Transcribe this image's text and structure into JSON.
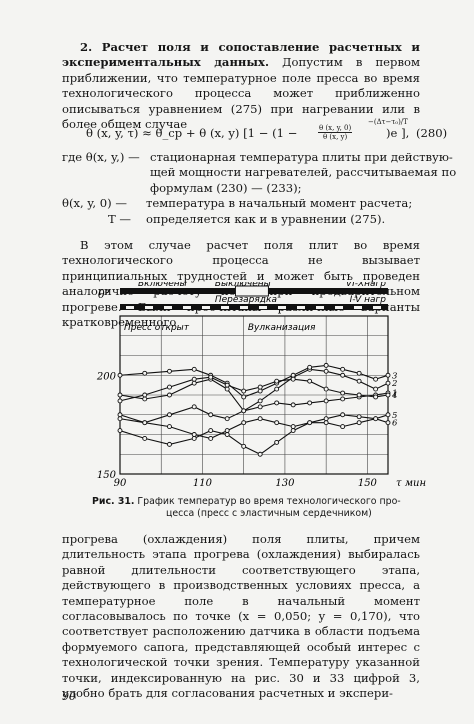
{
  "section": {
    "heading": "2. Расчет поля и сопоставление расчетных и экспериментальных данных.",
    "intro": "Допустим в первом приближении, что температурное поле пресса во время технологического процесса может приближенно описываться уравнением (275) при нагревании или в более общем случае"
  },
  "formula": {
    "main": "θ (x, y, τ) ≈ θ_ср + θ (x, y) [1 − (1 −",
    "frac_num": "θ (x, y, 0)",
    "frac_den": "θ (x, y)",
    "exponent": "−(Δτ−τ₀)/T",
    "tail": ")e ],",
    "number": "(280)"
  },
  "definitions": [
    {
      "term": "где θ(x, y,) —",
      "text": "стационарная температура плиты при действую-"
    },
    {
      "term": "",
      "text": "щей мощности нагревателей, рассчитываемая по"
    },
    {
      "term": "",
      "text": "формулам (230) — (233);"
    },
    {
      "term": "θ(x, y, 0) —",
      "text": "температура в начальный момент расчета;"
    },
    {
      "term": "T —",
      "text": "определяется как и в уравнении (275)."
    }
  ],
  "paragraph_mid": "В этом случае расчет поля плит во время технологического процесса не вызывает принципиальных трудностей и может быть проведен аналогично расчету поля при предварительном прогреве. Были просчитаны различные варианты кратковременного",
  "chart_data": {
    "type": "line",
    "title": "",
    "xlabel": "τ мин",
    "ylabel": "θ°",
    "xlim": [
      90,
      155
    ],
    "ylim": [
      150,
      230
    ],
    "x_ticks": [
      "90",
      "110",
      "130",
      "150"
    ],
    "y_ticks": [
      "150",
      "200"
    ],
    "grid": true,
    "legend": "none",
    "annotations": [
      "Включены",
      "Выключены",
      "VI-Хнагр",
      "Перезарядка",
      "I-V нагр",
      "Пресс открыт",
      "Вулканизация"
    ],
    "series": [
      {
        "name": "1",
        "x": [
          90,
          96,
          102,
          108,
          112,
          116,
          120,
          124,
          128,
          132,
          136,
          140,
          144,
          148,
          152,
          155
        ],
        "y": [
          180,
          176,
          180,
          184,
          180,
          178,
          182,
          184,
          186,
          185,
          186,
          187,
          188,
          189,
          190,
          191
        ]
      },
      {
        "name": "2",
        "x": [
          90,
          96,
          102,
          108,
          112,
          116,
          120,
          124,
          128,
          132,
          136,
          140,
          144,
          148,
          152,
          155
        ],
        "y": [
          190,
          188,
          190,
          196,
          198,
          193,
          182,
          187,
          193,
          199,
          203,
          202,
          200,
          197,
          193,
          196
        ]
      },
      {
        "name": "3",
        "x": [
          90,
          96,
          102,
          108,
          112,
          116,
          120,
          124,
          128,
          132,
          136,
          140,
          144,
          148,
          152,
          155
        ],
        "y": [
          200,
          201,
          202,
          203,
          200,
          196,
          189,
          192,
          196,
          200,
          204,
          205,
          203,
          201,
          198,
          200
        ]
      },
      {
        "name": "4",
        "x": [
          90,
          96,
          102,
          108,
          112,
          116,
          120,
          124,
          128,
          132,
          136,
          140,
          144,
          148,
          152,
          155
        ],
        "y": [
          187,
          190,
          194,
          198,
          199,
          195,
          192,
          194,
          197,
          198,
          197,
          193,
          191,
          190,
          189,
          190
        ]
      },
      {
        "name": "5",
        "x": [
          90,
          96,
          102,
          108,
          112,
          116,
          120,
          124,
          128,
          132,
          136,
          140,
          144,
          148,
          152,
          155
        ],
        "y": [
          178,
          176,
          174,
          170,
          168,
          172,
          176,
          178,
          176,
          174,
          176,
          178,
          180,
          179,
          178,
          180
        ]
      },
      {
        "name": "6",
        "x": [
          90,
          96,
          102,
          108,
          112,
          116,
          120,
          124,
          128,
          132,
          136,
          140,
          144,
          148,
          152,
          155
        ],
        "y": [
          172,
          168,
          165,
          168,
          172,
          170,
          164,
          160,
          166,
          172,
          176,
          176,
          174,
          176,
          178,
          176
        ]
      }
    ]
  },
  "caption": {
    "number": "Рис. 31.",
    "line1": "График температур во время технологического про-",
    "line2": "цесса (пресс с эластичным сердечником)"
  },
  "paragraph_bottom": "прогрева (охлаждения) поля плиты, причем длительность этапа прогрева (охлаждения) выбиралась равной длительности соответствующего этапа, действующего в производственных условиях пресса, а температурное поле в начальный момент согласовывалось по точке (x = 0,050; y = 0,170), что соответствует расположению датчика в области подъема формуемого сапога, представляющей особый интерес с технологической точки зрения. Температуру указанной точки, индексированную на рис. 30 и 33 цифрой 3, удобно брать для согласования расчетных и экспери-",
  "page_number": "90"
}
